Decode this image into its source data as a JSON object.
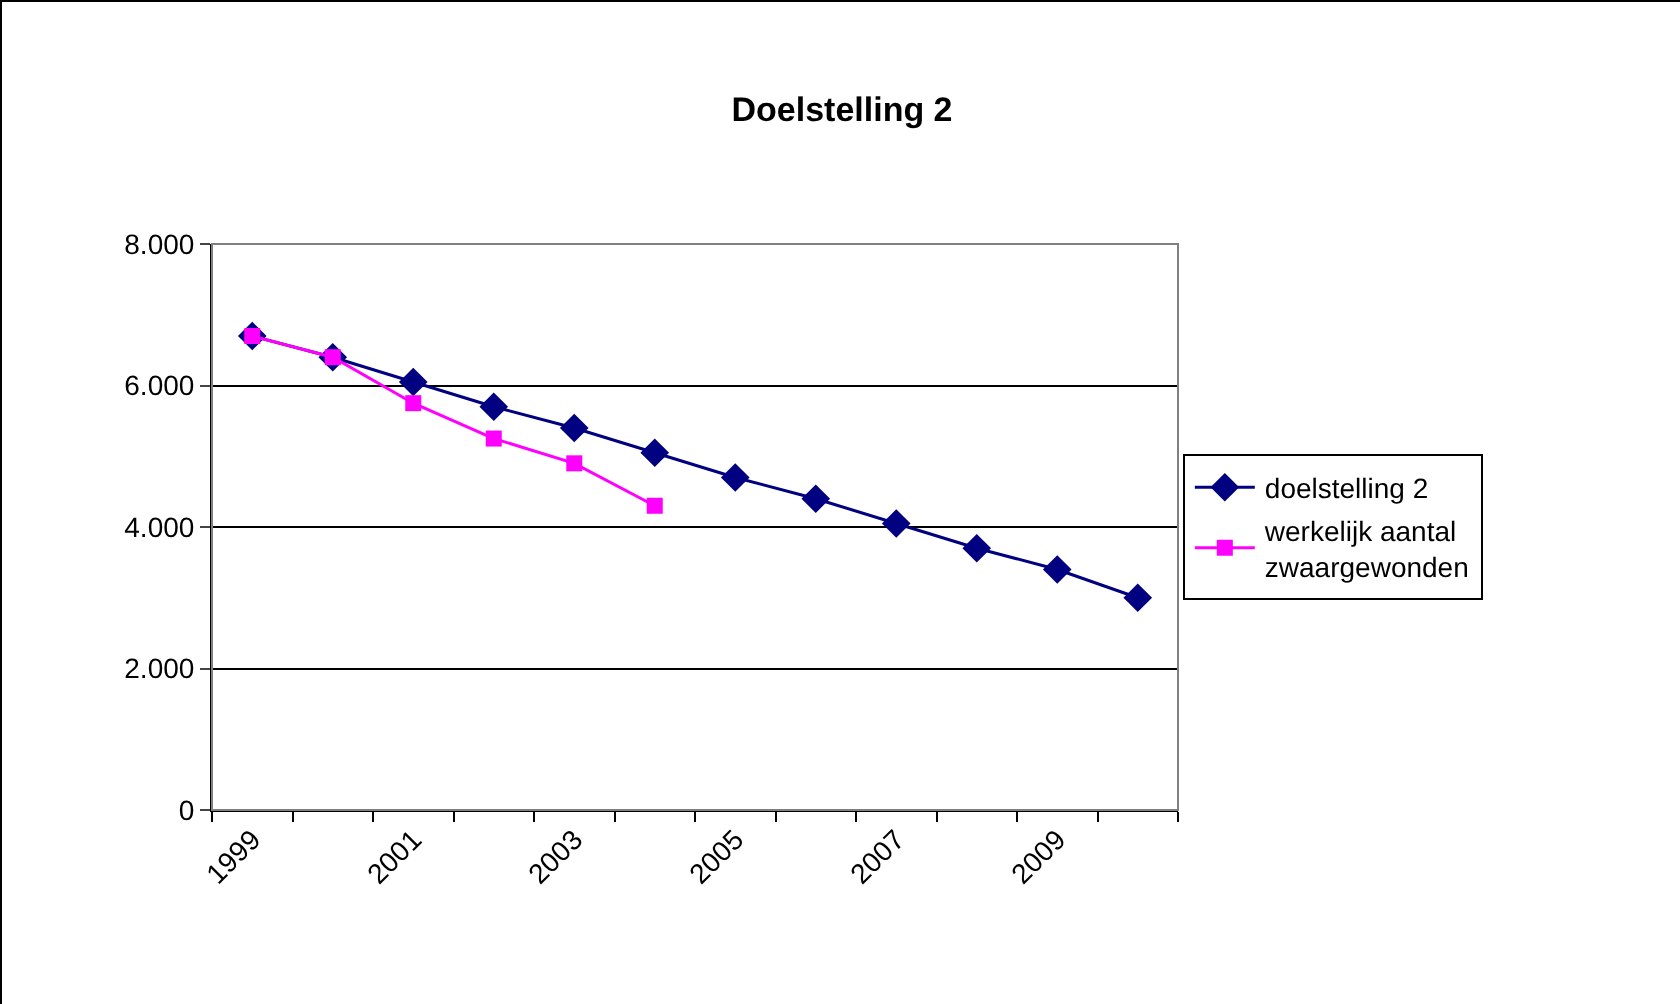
{
  "chart_data": {
    "type": "line",
    "title": "Doelstelling 2",
    "categories": [
      "1999",
      null,
      "2001",
      null,
      "2003",
      null,
      "2005",
      null,
      "2007",
      null,
      "2009",
      null
    ],
    "series": [
      {
        "name": "doelstelling 2",
        "color": "#000080",
        "marker": "diamond",
        "values": [
          6700,
          6400,
          6050,
          5700,
          5400,
          5050,
          4700,
          4400,
          4050,
          3700,
          3400,
          3000
        ]
      },
      {
        "name": "werkelijk aantal zwaargewonden",
        "color": "#ff00ff",
        "marker": "square",
        "values": [
          6700,
          6400,
          5750,
          5250,
          4900,
          4300,
          null,
          null,
          null,
          null,
          null,
          null
        ]
      }
    ],
    "ylim": [
      0,
      8000
    ],
    "yticks": [
      0,
      {
        "value": 2000,
        "label": "2.000"
      },
      {
        "value": 4000,
        "label": "4.000"
      },
      {
        "value": 6000,
        "label": "6.000"
      },
      {
        "value": 8000,
        "label": "8.000"
      }
    ],
    "grid": "y",
    "legend": "right",
    "line_style": "solid"
  }
}
